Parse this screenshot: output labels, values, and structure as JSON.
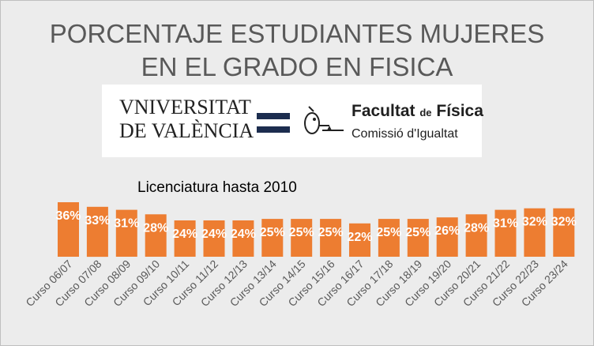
{
  "header": {
    "title_line1": "PORCENTAJE ESTUDIANTES MUJERES",
    "title_line2": "EN EL GRADO EN FISICA"
  },
  "logos": {
    "university_line1": "VNIVERSITAT",
    "university_line2": "DE VALÈNCIA",
    "faculty_name": "Facultat",
    "faculty_connector": "de",
    "faculty_subject": "Física",
    "commission": "Comissió d'Igualtat",
    "colors": {
      "text": "#1f1f1f",
      "equals": "#1c2d4f"
    }
  },
  "chart_data": {
    "type": "bar",
    "subtitle": "Licenciatura hasta 2010",
    "categories": [
      "Curso 06/07",
      "Curso 07/08",
      "Curso 08/09",
      "Curso 09/10",
      "Curso 10/11",
      "Curso 11/12",
      "Curso 12/13",
      "Curso 13/14",
      "Curso 14/15",
      "Curso 15/16",
      "Curso 16/17",
      "Curso 17/18",
      "Curso 18/19",
      "Curso 19/20",
      "Curso 20/21",
      "Curso 21/22",
      "Curso 22/23",
      "Curso 23/24"
    ],
    "values": [
      36,
      33,
      31,
      28,
      24,
      24,
      24,
      25,
      25,
      25,
      22,
      25,
      25,
      26,
      28,
      31,
      32,
      32
    ],
    "value_labels": [
      "36%",
      "33%",
      "31%",
      "28%",
      "24%",
      "24%",
      "24%",
      "25%",
      "25%",
      "25%",
      "22%",
      "25%",
      "25%",
      "26%",
      "28%",
      "31%",
      "32%",
      "32%"
    ],
    "unit": "%",
    "ylim": [
      0,
      36
    ],
    "grid": false,
    "legend": "none",
    "colors": {
      "bar": "#ed7d31",
      "bar_label": "#ffffff",
      "tick_label": "#595959"
    }
  }
}
